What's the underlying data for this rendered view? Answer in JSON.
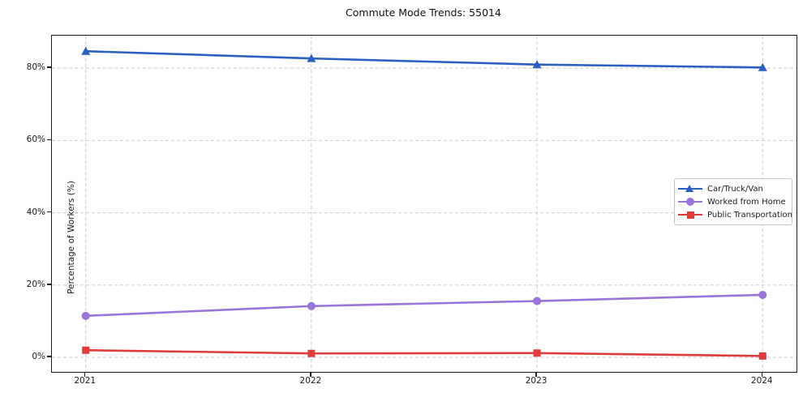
{
  "title": "Commute Mode Trends: 55014",
  "chart_data": {
    "type": "line",
    "title": "Commute Mode Trends: 55014",
    "xlabel": "",
    "ylabel": "Percentage of Workers (%)",
    "x": [
      2021,
      2022,
      2023,
      2024
    ],
    "x_tick_labels": [
      "2021",
      "2022",
      "2023",
      "2024"
    ],
    "y_ticks": [
      0,
      20,
      40,
      60,
      80
    ],
    "y_tick_labels": [
      "0%",
      "20%",
      "40%",
      "60%",
      "80%"
    ],
    "xlim": [
      2020.85,
      2024.15
    ],
    "ylim": [
      -4,
      89
    ],
    "grid": true,
    "grid_style": "dashed",
    "grid_color": "#cdcdcd",
    "legend_position": "center right",
    "series": [
      {
        "name": "Car/Truck/Van",
        "marker": "triangle",
        "color": "#2a5fc4",
        "values": [
          84.7,
          82.7,
          81.0,
          80.2
        ]
      },
      {
        "name": "Worked from Home",
        "marker": "circle",
        "color": "#9874db",
        "values": [
          11.5,
          14.2,
          15.6,
          17.3
        ]
      },
      {
        "name": "Public Transportation",
        "marker": "square",
        "color": "#e03c3c",
        "values": [
          2.0,
          1.1,
          1.2,
          0.4
        ]
      }
    ]
  }
}
